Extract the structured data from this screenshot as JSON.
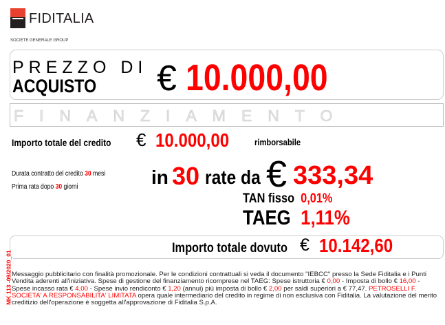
{
  "header": {
    "brand": "FIDITALIA",
    "group": "SOCIETE GENERALE GROUP"
  },
  "price_box": {
    "line1": "PREZZO DI",
    "line2": "ACQUISTO",
    "currency": "€",
    "value": "10.000,00"
  },
  "financing_banner": "FINANZIAMENTO",
  "credit": {
    "label": "Importo totale del credito",
    "currency": "€",
    "value": "10.000,00",
    "suffix": "rimborsabile"
  },
  "duration": {
    "prefix": "Durata contratto del credito",
    "months": "30",
    "unit": "mesi"
  },
  "first_installment": {
    "prefix": "Prima rata dopo",
    "days": "30",
    "unit": "giorni"
  },
  "installments": {
    "prefix": "in",
    "count": "30",
    "middle": "rate da",
    "currency": "€",
    "amount": "333,34"
  },
  "tan": {
    "label": "TAN fisso",
    "value": "0,01%"
  },
  "taeg": {
    "label": "TAEG",
    "value": "1,11%"
  },
  "total_due": {
    "label": "Importo totale dovuto",
    "currency": "€",
    "value": "10.142,60"
  },
  "side_code": "MK 113 -09/2020_01",
  "footer": {
    "t1": "Messaggio pubblicitario con finalità promozionale. Per le condizioni contrattuali si veda il documento \"IEBCC\" presso la Sede Fiditalia e i Punti Vendita aderenti all'iniziativa. Spese di gestione del finanziamento ricomprese nel TAEG: Spese istruttoria € ",
    "v1": "0,00",
    "t2": " - Imposta di bollo € ",
    "v2": "16,00",
    "t3": " -  Spese incasso rata € ",
    "v3": "4,00",
    "t4": " - Spese invio rendiconto € ",
    "v4": "1,20",
    "t5": " (annui) più imposta di bollo € ",
    "v5": "2,00",
    "t6": " per saldi superiori a € 77,47.  ",
    "intermediary": "PETROSELLI F. SOCIETA' A RESPONSABILITA' LIMITATA",
    "t7": " opera quale intermediario del credito in regime di non esclusiva con Fiditalia. La valutazione del merito creditizio dell'operazione è soggetta all'approvazione di Fiditalia S.p.A."
  },
  "colors": {
    "accent": "#ff0000",
    "logo_red": "#e9412f",
    "logo_dark": "#231f20"
  }
}
